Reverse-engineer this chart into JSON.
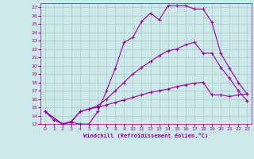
{
  "xlabel": "Windchill (Refroidissement éolien,°C)",
  "bg_color": "#cce8e8",
  "line_color": "#990099",
  "grid_color": "#aacccc",
  "xlim": [
    -0.5,
    23.5
  ],
  "ylim": [
    13,
    27.5
  ],
  "yticks": [
    13,
    14,
    15,
    16,
    17,
    18,
    19,
    20,
    21,
    22,
    23,
    24,
    25,
    26,
    27
  ],
  "xticks": [
    0,
    1,
    2,
    3,
    4,
    5,
    6,
    7,
    8,
    9,
    10,
    11,
    12,
    13,
    14,
    15,
    16,
    17,
    18,
    19,
    20,
    21,
    22,
    23
  ],
  "line1_x": [
    0,
    1,
    2,
    3,
    4,
    5,
    6,
    7,
    8,
    9,
    10,
    11,
    12,
    13,
    14,
    15,
    16,
    17,
    18,
    19,
    20,
    21,
    22,
    23
  ],
  "line1_y": [
    14.5,
    13.5,
    13.0,
    13.2,
    13.0,
    13.0,
    14.5,
    17.0,
    19.7,
    22.8,
    23.4,
    25.3,
    26.3,
    25.5,
    27.2,
    27.2,
    27.2,
    26.8,
    26.8,
    25.2,
    21.5,
    19.7,
    18.0,
    16.6
  ],
  "line2_x": [
    0,
    2,
    3,
    4,
    5,
    6,
    7,
    8,
    9,
    10,
    11,
    12,
    13,
    14,
    15,
    16,
    17,
    18,
    19,
    20,
    21,
    22,
    23
  ],
  "line2_y": [
    14.5,
    13.0,
    13.3,
    14.5,
    14.8,
    15.2,
    16.0,
    17.0,
    18.0,
    19.0,
    19.8,
    20.5,
    21.2,
    21.8,
    22.0,
    22.5,
    22.8,
    21.5,
    21.5,
    19.8,
    18.5,
    17.0,
    15.8
  ],
  "line3_x": [
    0,
    2,
    3,
    4,
    5,
    6,
    7,
    8,
    9,
    10,
    11,
    12,
    13,
    14,
    15,
    16,
    17,
    18,
    19,
    20,
    21,
    22,
    23
  ],
  "line3_y": [
    14.5,
    13.0,
    13.3,
    14.5,
    14.8,
    15.0,
    15.3,
    15.6,
    15.9,
    16.2,
    16.5,
    16.8,
    17.0,
    17.2,
    17.5,
    17.7,
    17.9,
    18.0,
    16.5,
    16.5,
    16.3,
    16.5,
    16.6
  ]
}
